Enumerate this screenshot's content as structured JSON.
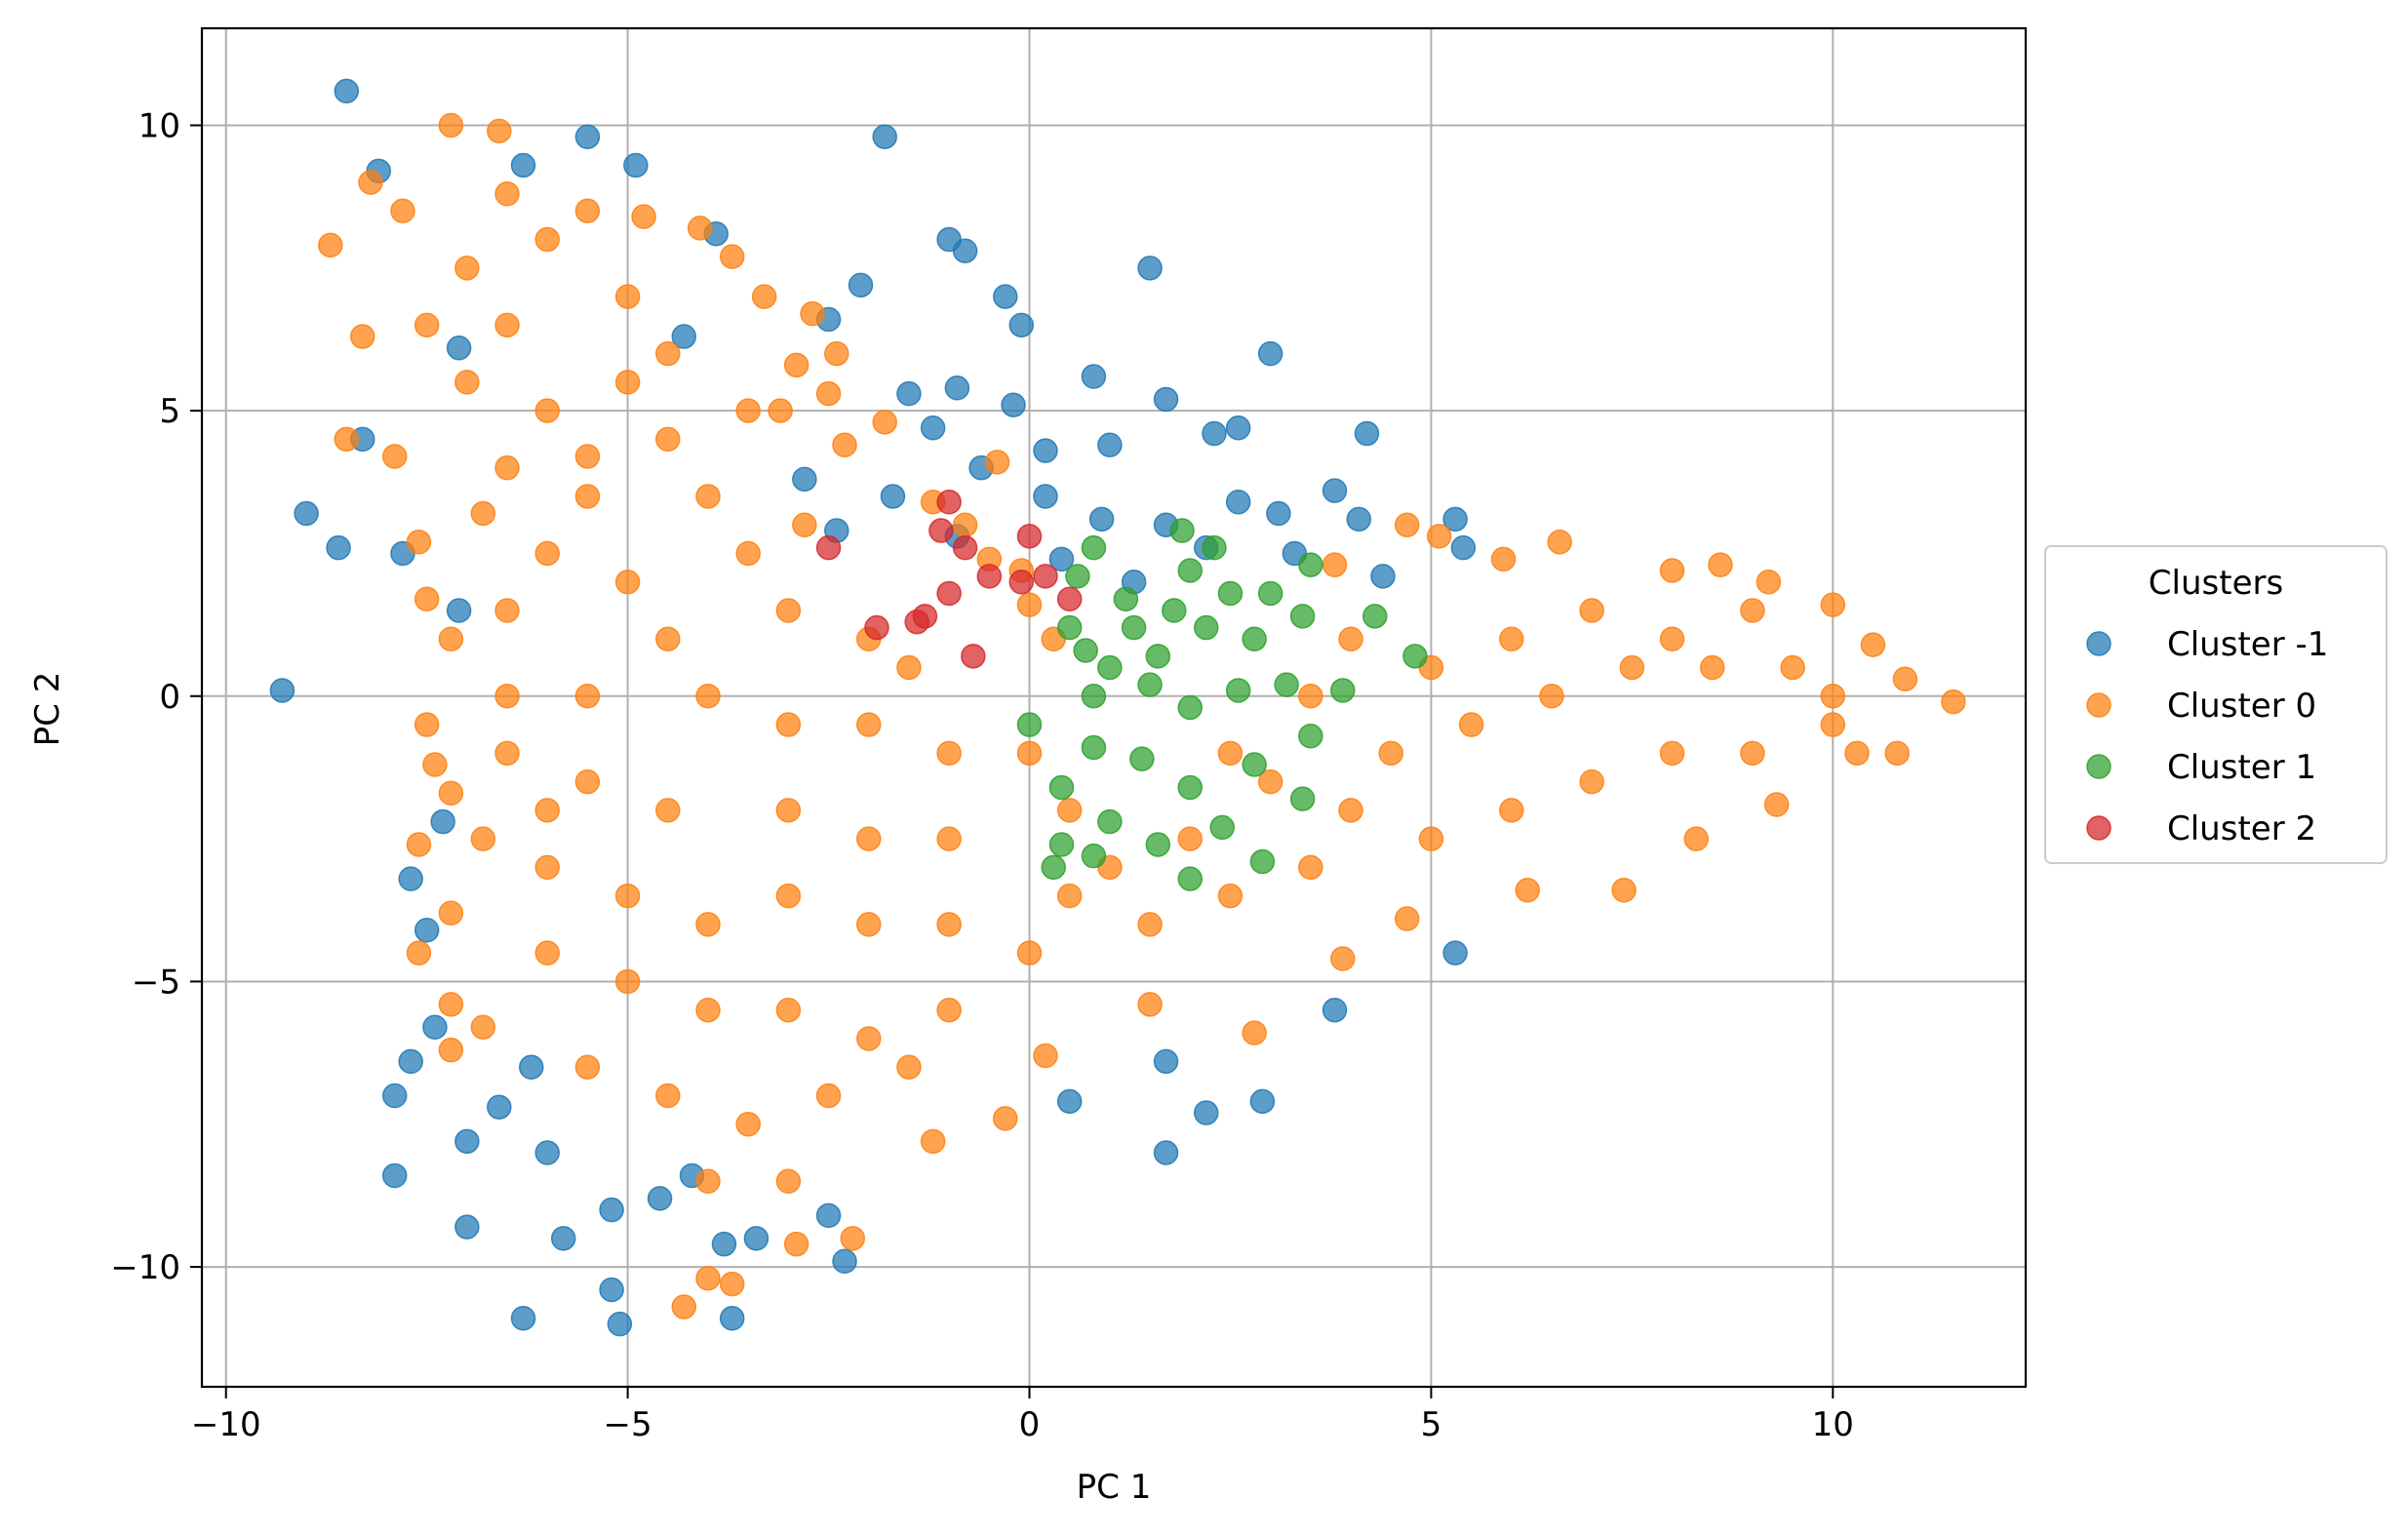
{
  "chart_data": {
    "type": "scatter",
    "title": "",
    "xlabel": "PC 1",
    "ylabel": "PC 2",
    "xlim": [
      -10.3,
      12.4
    ],
    "ylim": [
      -12.1,
      11.7
    ],
    "xticks": [
      -10,
      -5,
      0,
      5,
      10
    ],
    "yticks": [
      -10,
      -5,
      0,
      5,
      10
    ],
    "xtick_labels": [
      "−10",
      "−5",
      "0",
      "5",
      "10"
    ],
    "ytick_labels": [
      "−10",
      "−5",
      "0",
      "5",
      "10"
    ],
    "grid": true,
    "legend": {
      "title": "Clusters",
      "placement": "outside-right-center",
      "entries": [
        "Cluster -1",
        "Cluster 0",
        "Cluster 1",
        "Cluster 2"
      ]
    },
    "series": [
      {
        "name": "Cluster -1",
        "color": "#1f77b4",
        "points": [
          [
            -8.5,
            10.6
          ],
          [
            -1.8,
            9.8
          ],
          [
            -4.9,
            9.3
          ],
          [
            -5.5,
            9.8
          ],
          [
            -6.3,
            9.3
          ],
          [
            -8.1,
            9.2
          ],
          [
            -2.1,
            7.2
          ],
          [
            -1.0,
            8.0
          ],
          [
            -0.8,
            7.8
          ],
          [
            -0.3,
            7.0
          ],
          [
            -0.1,
            6.5
          ],
          [
            1.5,
            7.5
          ],
          [
            3.0,
            6.0
          ],
          [
            0.8,
            5.6
          ],
          [
            1.7,
            5.2
          ],
          [
            2.3,
            4.6
          ],
          [
            2.6,
            4.7
          ],
          [
            4.2,
            4.6
          ],
          [
            -9.0,
            3.2
          ],
          [
            -8.6,
            2.6
          ],
          [
            -9.3,
            0.1
          ],
          [
            3.1,
            3.2
          ],
          [
            3.8,
            3.6
          ],
          [
            4.1,
            3.1
          ],
          [
            5.3,
            3.1
          ],
          [
            5.4,
            2.6
          ],
          [
            -1.2,
            4.7
          ],
          [
            -0.6,
            4.0
          ],
          [
            0.2,
            3.5
          ],
          [
            0.9,
            3.1
          ],
          [
            1.7,
            3.0
          ],
          [
            2.2,
            2.6
          ],
          [
            -0.2,
            5.1
          ],
          [
            -1.5,
            5.3
          ],
          [
            -7.7,
            -3.2
          ],
          [
            -7.5,
            -4.1
          ],
          [
            -7.3,
            -2.2
          ],
          [
            -7.7,
            -6.4
          ],
          [
            -7.9,
            -7.0
          ],
          [
            -7.0,
            -7.8
          ],
          [
            -7.9,
            -8.4
          ],
          [
            -6.2,
            -6.5
          ],
          [
            -7.0,
            -9.3
          ],
          [
            -5.8,
            -9.5
          ],
          [
            -6.3,
            -10.9
          ],
          [
            -5.2,
            -10.4
          ],
          [
            -5.1,
            -11.0
          ],
          [
            -3.7,
            -10.9
          ],
          [
            -3.8,
            -9.6
          ],
          [
            -4.6,
            -8.8
          ],
          [
            -2.5,
            -9.1
          ],
          [
            -2.3,
            -9.9
          ],
          [
            0.5,
            -7.1
          ],
          [
            1.7,
            -6.4
          ],
          [
            2.2,
            -7.3
          ],
          [
            2.9,
            -7.1
          ],
          [
            1.7,
            -8.0
          ],
          [
            3.8,
            -5.5
          ],
          [
            5.3,
            -4.5
          ],
          [
            -6.6,
            -7.2
          ],
          [
            -6.0,
            -8.0
          ],
          [
            -5.2,
            -9.0
          ],
          [
            -4.2,
            -8.4
          ],
          [
            -3.4,
            -9.5
          ],
          [
            -7.8,
            2.5
          ],
          [
            -7.1,
            1.5
          ],
          [
            -2.8,
            3.8
          ],
          [
            -2.4,
            2.9
          ],
          [
            -1.7,
            3.5
          ],
          [
            -0.9,
            2.8
          ],
          [
            0.4,
            2.4
          ],
          [
            1.3,
            2.0
          ],
          [
            2.6,
            3.4
          ],
          [
            3.3,
            2.5
          ],
          [
            4.4,
            2.1
          ],
          [
            1.0,
            4.4
          ],
          [
            0.2,
            4.3
          ],
          [
            -0.9,
            5.4
          ],
          [
            -2.5,
            6.6
          ],
          [
            -3.9,
            8.1
          ],
          [
            -4.3,
            6.3
          ],
          [
            -7.1,
            6.1
          ],
          [
            -8.3,
            4.5
          ],
          [
            -7.4,
            -5.8
          ]
        ]
      },
      {
        "name": "Cluster 0",
        "color": "#ff7f0e",
        "points": [
          [
            -7.2,
            10.0
          ],
          [
            -6.6,
            9.9
          ],
          [
            -8.7,
            7.9
          ],
          [
            -8.3,
            6.3
          ],
          [
            -8.5,
            4.5
          ],
          [
            -7.9,
            4.2
          ],
          [
            -7.6,
            2.7
          ],
          [
            -7.5,
            1.7
          ],
          [
            -7.2,
            1.0
          ],
          [
            -7.5,
            -0.5
          ],
          [
            -7.4,
            -1.2
          ],
          [
            -7.2,
            -1.7
          ],
          [
            -7.6,
            -2.6
          ],
          [
            -7.2,
            -3.8
          ],
          [
            -7.6,
            -4.5
          ],
          [
            -7.2,
            -5.4
          ],
          [
            -7.2,
            -6.2
          ],
          [
            -6.8,
            -5.8
          ],
          [
            -4.3,
            -10.7
          ],
          [
            -4.0,
            -10.2
          ],
          [
            -3.7,
            -10.3
          ],
          [
            -2.9,
            -9.6
          ],
          [
            -2.2,
            -9.5
          ],
          [
            -1.2,
            -7.8
          ],
          [
            -0.3,
            -7.4
          ],
          [
            0.2,
            -6.3
          ],
          [
            1.5,
            -5.4
          ],
          [
            2.8,
            -5.9
          ],
          [
            3.9,
            -4.6
          ],
          [
            4.7,
            -3.9
          ],
          [
            6.2,
            -3.4
          ],
          [
            7.4,
            -3.4
          ],
          [
            8.3,
            -2.5
          ],
          [
            9.3,
            -1.9
          ],
          [
            10.3,
            -1.0
          ],
          [
            10.8,
            -1.0
          ],
          [
            11.5,
            -0.1
          ],
          [
            10.9,
            0.3
          ],
          [
            10.5,
            0.9
          ],
          [
            10.0,
            1.6
          ],
          [
            9.2,
            2.0
          ],
          [
            8.6,
            2.3
          ],
          [
            8.0,
            2.2
          ],
          [
            6.6,
            2.7
          ],
          [
            5.9,
            2.4
          ],
          [
            5.1,
            2.8
          ],
          [
            4.7,
            3.0
          ],
          [
            3.8,
            2.3
          ],
          [
            -4.8,
            8.4
          ],
          [
            -4.1,
            8.2
          ],
          [
            -3.7,
            7.7
          ],
          [
            -3.3,
            7.0
          ],
          [
            -2.7,
            6.7
          ],
          [
            -2.4,
            6.0
          ],
          [
            -2.9,
            5.8
          ],
          [
            -3.1,
            5.0
          ],
          [
            -2.3,
            4.4
          ],
          [
            -1.2,
            3.4
          ],
          [
            -0.8,
            3.0
          ],
          [
            -0.4,
            4.1
          ],
          [
            -0.5,
            2.4
          ],
          [
            -0.1,
            2.2
          ],
          [
            0.0,
            1.6
          ],
          [
            0.3,
            1.0
          ],
          [
            -6.0,
            8.0
          ],
          [
            -5.0,
            7.0
          ],
          [
            -6.5,
            6.5
          ],
          [
            -7.0,
            5.5
          ],
          [
            -6.0,
            5.0
          ],
          [
            -5.0,
            5.5
          ],
          [
            -4.5,
            4.5
          ],
          [
            -6.5,
            4.0
          ],
          [
            -5.5,
            3.5
          ],
          [
            -4.0,
            3.5
          ],
          [
            -3.5,
            2.5
          ],
          [
            -6.0,
            2.5
          ],
          [
            -5.0,
            2.0
          ],
          [
            -6.5,
            1.5
          ],
          [
            -4.5,
            1.0
          ],
          [
            -3.0,
            1.5
          ],
          [
            -2.0,
            1.0
          ],
          [
            -1.5,
            0.5
          ],
          [
            -5.5,
            0.0
          ],
          [
            -6.5,
            0.0
          ],
          [
            -4.0,
            0.0
          ],
          [
            -3.0,
            -0.5
          ],
          [
            -2.0,
            -0.5
          ],
          [
            -1.0,
            -1.0
          ],
          [
            -6.5,
            -1.0
          ],
          [
            -5.5,
            -1.5
          ],
          [
            -4.5,
            -2.0
          ],
          [
            -3.0,
            -2.0
          ],
          [
            -2.0,
            -2.5
          ],
          [
            -1.0,
            -2.5
          ],
          [
            -6.0,
            -3.0
          ],
          [
            -5.0,
            -3.5
          ],
          [
            -4.0,
            -4.0
          ],
          [
            -3.0,
            -3.5
          ],
          [
            -2.0,
            -4.0
          ],
          [
            -1.0,
            -4.0
          ],
          [
            -6.0,
            -4.5
          ],
          [
            -5.0,
            -5.0
          ],
          [
            -4.0,
            -5.5
          ],
          [
            -3.0,
            -5.5
          ],
          [
            -2.0,
            -6.0
          ],
          [
            -1.0,
            -5.5
          ],
          [
            -5.5,
            -6.5
          ],
          [
            -4.5,
            -7.0
          ],
          [
            -3.5,
            -7.5
          ],
          [
            -2.5,
            -7.0
          ],
          [
            -1.5,
            -6.5
          ],
          [
            -4.0,
            -8.5
          ],
          [
            -3.0,
            -8.5
          ],
          [
            0.0,
            -4.5
          ],
          [
            0.5,
            -3.5
          ],
          [
            1.0,
            -3.0
          ],
          [
            0.5,
            -2.0
          ],
          [
            0.0,
            -1.0
          ],
          [
            1.5,
            -4.0
          ],
          [
            2.5,
            -3.5
          ],
          [
            3.5,
            -3.0
          ],
          [
            2.0,
            -2.5
          ],
          [
            4.0,
            -2.0
          ],
          [
            5.0,
            -2.5
          ],
          [
            6.0,
            -2.0
          ],
          [
            7.0,
            -1.5
          ],
          [
            8.0,
            -1.0
          ],
          [
            9.0,
            -1.0
          ],
          [
            10.0,
            -0.5
          ],
          [
            4.5,
            -1.0
          ],
          [
            5.5,
            -0.5
          ],
          [
            6.5,
            0.0
          ],
          [
            7.5,
            0.5
          ],
          [
            8.5,
            0.5
          ],
          [
            9.5,
            0.5
          ],
          [
            10.0,
            0.0
          ],
          [
            5.0,
            0.5
          ],
          [
            6.0,
            1.0
          ],
          [
            7.0,
            1.5
          ],
          [
            8.0,
            1.0
          ],
          [
            9.0,
            1.5
          ],
          [
            4.0,
            1.0
          ],
          [
            3.5,
            0.0
          ],
          [
            3.0,
            -1.5
          ],
          [
            2.5,
            -1.0
          ],
          [
            -7.0,
            7.5
          ],
          [
            -7.5,
            6.5
          ],
          [
            -5.5,
            8.5
          ],
          [
            -6.5,
            8.8
          ],
          [
            -7.8,
            8.5
          ],
          [
            -8.2,
            9.0
          ],
          [
            -2.5,
            5.3
          ],
          [
            -1.8,
            4.8
          ],
          [
            -2.8,
            3.0
          ],
          [
            -4.5,
            6.0
          ],
          [
            -3.5,
            5.0
          ],
          [
            -5.5,
            4.2
          ],
          [
            -6.8,
            3.2
          ],
          [
            -6.0,
            -2.0
          ],
          [
            -6.8,
            -2.5
          ]
        ]
      },
      {
        "name": "Cluster 1",
        "color": "#2ca02c",
        "points": [
          [
            0.6,
            2.1
          ],
          [
            0.8,
            2.6
          ],
          [
            1.2,
            1.7
          ],
          [
            1.9,
            2.9
          ],
          [
            2.3,
            2.6
          ],
          [
            2.0,
            2.2
          ],
          [
            3.0,
            1.8
          ],
          [
            3.5,
            2.3
          ],
          [
            3.4,
            1.4
          ],
          [
            4.3,
            1.4
          ],
          [
            4.8,
            0.7
          ],
          [
            2.8,
            1.0
          ],
          [
            2.2,
            1.2
          ],
          [
            1.6,
            0.7
          ],
          [
            1.0,
            0.5
          ],
          [
            0.5,
            1.2
          ],
          [
            0.8,
            0.0
          ],
          [
            1.5,
            0.2
          ],
          [
            2.0,
            -0.2
          ],
          [
            2.6,
            0.1
          ],
          [
            3.2,
            0.2
          ],
          [
            3.9,
            0.1
          ],
          [
            3.5,
            -0.7
          ],
          [
            2.8,
            -1.2
          ],
          [
            3.4,
            -1.8
          ],
          [
            2.4,
            -2.3
          ],
          [
            2.0,
            -1.6
          ],
          [
            1.4,
            -1.1
          ],
          [
            0.8,
            -0.9
          ],
          [
            0.0,
            -0.5
          ],
          [
            0.4,
            -1.6
          ],
          [
            1.0,
            -2.2
          ],
          [
            1.6,
            -2.6
          ],
          [
            0.8,
            -2.8
          ],
          [
            0.4,
            -2.6
          ],
          [
            0.3,
            -3.0
          ],
          [
            2.0,
            -3.2
          ],
          [
            2.9,
            -2.9
          ],
          [
            0.7,
            0.8
          ],
          [
            1.3,
            1.2
          ],
          [
            1.8,
            1.5
          ],
          [
            2.5,
            1.8
          ]
        ]
      },
      {
        "name": "Cluster 2",
        "color": "#d62728",
        "points": [
          [
            -1.0,
            3.4
          ],
          [
            -1.1,
            2.9
          ],
          [
            -0.8,
            2.6
          ],
          [
            0.0,
            2.8
          ],
          [
            -2.5,
            2.6
          ],
          [
            -0.5,
            2.1
          ],
          [
            -0.1,
            2.0
          ],
          [
            0.2,
            2.1
          ],
          [
            -1.0,
            1.8
          ],
          [
            -1.4,
            1.3
          ],
          [
            -1.3,
            1.4
          ],
          [
            -1.9,
            1.2
          ],
          [
            -0.7,
            0.7
          ],
          [
            0.5,
            1.7
          ]
        ]
      }
    ]
  }
}
